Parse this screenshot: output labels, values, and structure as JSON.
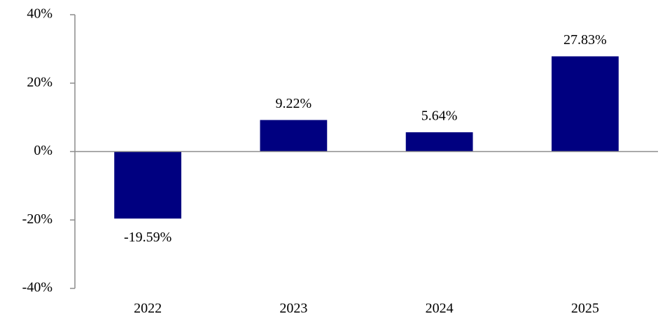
{
  "chart_data": {
    "type": "bar",
    "categories": [
      "2022",
      "2023",
      "2024",
      "2025"
    ],
    "values": [
      -19.59,
      9.22,
      5.64,
      27.83
    ],
    "value_labels": [
      "-19.59%",
      "9.22%",
      "5.64%",
      "27.83%"
    ],
    "color": "#000080",
    "ylim": [
      -40,
      40
    ],
    "yticks": [
      {
        "value": -40,
        "label": "-40%"
      },
      {
        "value": -20,
        "label": "-20%"
      },
      {
        "value": 0,
        "label": "0%"
      },
      {
        "value": 20,
        "label": "20%"
      },
      {
        "value": 40,
        "label": "40%"
      }
    ],
    "grid": false
  }
}
